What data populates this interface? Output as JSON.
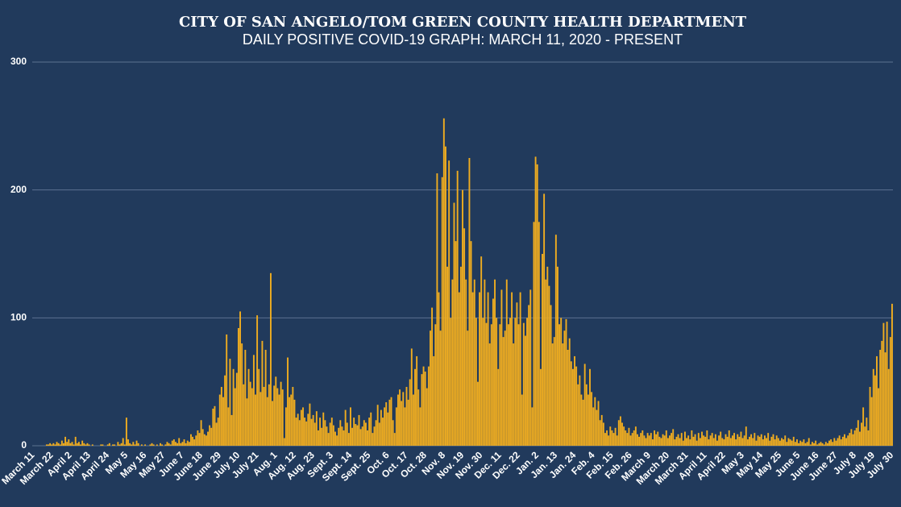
{
  "chart_data": {
    "type": "bar",
    "title": "CITY OF SAN ANGELO/TOM GREEN COUNTY HEALTH DEPARTMENT",
    "subtitle": "DAILY POSITIVE COVID-19 GRAPH: MARCH 11, 2020 - PRESENT",
    "color": "#f0ad20",
    "grid": true,
    "ylim": [
      0,
      300
    ],
    "yticks": [
      0,
      100,
      200,
      300
    ],
    "categories": [
      "March 11",
      null,
      null,
      null,
      null,
      null,
      null,
      null,
      null,
      null,
      null,
      "March 22",
      null,
      null,
      null,
      null,
      null,
      null,
      null,
      null,
      null,
      null,
      "April 2",
      null,
      null,
      null,
      null,
      null,
      null,
      null,
      null,
      null,
      null,
      "April 13",
      null,
      null,
      null,
      null,
      null,
      null,
      null,
      null,
      null,
      null,
      "April 24",
      null,
      null,
      null,
      null,
      null,
      null,
      null,
      null,
      null,
      null,
      "May 5",
      null,
      null,
      null,
      null,
      null,
      null,
      null,
      null,
      null,
      null,
      "May 16",
      null,
      null,
      null,
      null,
      null,
      null,
      null,
      null,
      null,
      null,
      "May 27",
      null,
      null,
      null,
      null,
      null,
      null,
      null,
      null,
      null,
      null,
      "June 7",
      null,
      null,
      null,
      null,
      null,
      null,
      null,
      null,
      null,
      null,
      "June 18",
      null,
      null,
      null,
      null,
      null,
      null,
      null,
      null,
      null,
      null,
      "June 29",
      null,
      null,
      null,
      null,
      null,
      null,
      null,
      null,
      null,
      null,
      "July 10",
      null,
      null,
      null,
      null,
      null,
      null,
      null,
      null,
      null,
      null,
      "July 21",
      null,
      null,
      null,
      null,
      null,
      null,
      null,
      null,
      null,
      null,
      "Aug. 1",
      null,
      null,
      null,
      null,
      null,
      null,
      null,
      null,
      null,
      null,
      "Aug. 12",
      null,
      null,
      null,
      null,
      null,
      null,
      null,
      null,
      null,
      null,
      "Aug. 23",
      null,
      null,
      null,
      null,
      null,
      null,
      null,
      null,
      null,
      null,
      "Sept. 3",
      null,
      null,
      null,
      null,
      null,
      null,
      null,
      null,
      null,
      null,
      "Sept. 14",
      null,
      null,
      null,
      null,
      null,
      null,
      null,
      null,
      null,
      null,
      "Sept. 25",
      null,
      null,
      null,
      null,
      null,
      null,
      null,
      null,
      null,
      null,
      "Oct. 6",
      null,
      null,
      null,
      null,
      null,
      null,
      null,
      null,
      null,
      null,
      "Oct. 17",
      null,
      null,
      null,
      null,
      null,
      null,
      null,
      null,
      null,
      null,
      "Oct. 28",
      null,
      null,
      null,
      null,
      null,
      null,
      null,
      null,
      null,
      null,
      "Nov. 8",
      null,
      null,
      null,
      null,
      null,
      null,
      null,
      null,
      null,
      null,
      "Nov. 19",
      null,
      null,
      null,
      null,
      null,
      null,
      null,
      null,
      null,
      null,
      "Nov. 30",
      null,
      null,
      null,
      null,
      null,
      null,
      null,
      null,
      null,
      null,
      "Dec. 11",
      null,
      null,
      null,
      null,
      null,
      null,
      null,
      null,
      null,
      null,
      "Dec. 22",
      null,
      null,
      null,
      null,
      null,
      null,
      null,
      null,
      null,
      null,
      "Jan. 2",
      null,
      null,
      null,
      null,
      null,
      null,
      null,
      null,
      null,
      null,
      "Jan. 13",
      null,
      null,
      null,
      null,
      null,
      null,
      null,
      null,
      null,
      null,
      "Jan. 24",
      null,
      null,
      null,
      null,
      null,
      null,
      null,
      null,
      null,
      null,
      "Feb. 4",
      null,
      null,
      null,
      null,
      null,
      null,
      null,
      null,
      null,
      null,
      "Feb. 15",
      null,
      null,
      null,
      null,
      null,
      null,
      null,
      null,
      null,
      null,
      "Feb. 26",
      null,
      null,
      null,
      null,
      null,
      null,
      null,
      null,
      null,
      null,
      "March 9",
      null,
      null,
      null,
      null,
      null,
      null,
      null,
      null,
      null,
      null,
      "March 20",
      null,
      null,
      null,
      null,
      null,
      null,
      null,
      null,
      null,
      null,
      "March 31",
      null,
      null,
      null,
      null,
      null,
      null,
      null,
      null,
      null,
      null,
      "April 11",
      null,
      null,
      null,
      null,
      null,
      null,
      null,
      null,
      null,
      null,
      "April 22",
      null,
      null,
      null,
      null,
      null,
      null,
      null,
      null,
      null,
      null,
      "May 3",
      null,
      null,
      null,
      null,
      null,
      null,
      null,
      null,
      null,
      null,
      "May 14",
      null,
      null,
      null,
      null,
      null,
      null,
      null,
      null,
      null,
      null,
      "May 25",
      null,
      null,
      null,
      null,
      null,
      null,
      null,
      null,
      null,
      null,
      "June 5",
      null,
      null,
      null,
      null,
      null,
      null,
      null,
      null,
      null,
      null,
      "June 16",
      null,
      null,
      null,
      null,
      null,
      null,
      null,
      null,
      null,
      null,
      "June 27",
      null,
      null,
      null,
      null,
      null,
      null,
      null,
      null,
      null,
      null,
      "July 8",
      null,
      null,
      null,
      null,
      null,
      null,
      null,
      null,
      null,
      null,
      "July 19",
      null,
      null,
      null,
      null,
      null,
      null,
      null,
      null,
      null,
      null,
      "July 30"
    ],
    "values": [
      0,
      0,
      0,
      0,
      0,
      0,
      0,
      0,
      1,
      1,
      2,
      1,
      2,
      1,
      3,
      2,
      1,
      4,
      2,
      7,
      3,
      5,
      2,
      3,
      1,
      7,
      2,
      3,
      1,
      4,
      2,
      1,
      2,
      1,
      0,
      1,
      0,
      0,
      0,
      0,
      1,
      1,
      0,
      0,
      1,
      2,
      0,
      1,
      1,
      0,
      3,
      1,
      2,
      6,
      1,
      22,
      5,
      2,
      1,
      3,
      1,
      4,
      2,
      0,
      1,
      0,
      1,
      0,
      0,
      1,
      2,
      1,
      0,
      1,
      0,
      2,
      1,
      0,
      1,
      3,
      2,
      1,
      4,
      5,
      3,
      2,
      6,
      2,
      3,
      5,
      2,
      4,
      3,
      9,
      7,
      5,
      8,
      12,
      10,
      20,
      13,
      9,
      8,
      11,
      16,
      14,
      29,
      31,
      18,
      22,
      40,
      46,
      38,
      55,
      87,
      30,
      68,
      24,
      60,
      45,
      57,
      92,
      105,
      80,
      48,
      75,
      37,
      60,
      50,
      45,
      71,
      40,
      102,
      60,
      42,
      82,
      46,
      75,
      38,
      48,
      135,
      35,
      47,
      54,
      45,
      40,
      50,
      44,
      6,
      30,
      69,
      38,
      40,
      46,
      36,
      22,
      25,
      20,
      28,
      30,
      22,
      19,
      25,
      33,
      21,
      24,
      18,
      27,
      12,
      22,
      14,
      26,
      20,
      15,
      10,
      18,
      22,
      16,
      11,
      8,
      14,
      20,
      15,
      12,
      28,
      18,
      10,
      30,
      14,
      22,
      17,
      16,
      24,
      13,
      15,
      20,
      18,
      12,
      22,
      26,
      10,
      15,
      20,
      32,
      18,
      28,
      22,
      30,
      34,
      26,
      36,
      38,
      20,
      10,
      30,
      40,
      44,
      35,
      42,
      30,
      46,
      36,
      52,
      76,
      40,
      60,
      70,
      44,
      30,
      56,
      62,
      58,
      45,
      62,
      90,
      108,
      70,
      95,
      213,
      120,
      90,
      210,
      256,
      234,
      140,
      223,
      100,
      130,
      190,
      160,
      215,
      120,
      140,
      200,
      170,
      130,
      90,
      225,
      160,
      120,
      130,
      100,
      50,
      120,
      148,
      100,
      130,
      96,
      120,
      80,
      95,
      115,
      130,
      100,
      60,
      95,
      122,
      85,
      90,
      130,
      95,
      100,
      120,
      80,
      100,
      112,
      95,
      120,
      40,
      96,
      86,
      100,
      110,
      122,
      30,
      175,
      226,
      220,
      175,
      60,
      150,
      197,
      130,
      140,
      125,
      110,
      80,
      85,
      165,
      140,
      95,
      100,
      80,
      90,
      99,
      75,
      84,
      66,
      60,
      70,
      62,
      48,
      55,
      40,
      36,
      64,
      48,
      40,
      60,
      42,
      30,
      38,
      28,
      35,
      20,
      24,
      18,
      10,
      12,
      8,
      15,
      12,
      10,
      14,
      8,
      20,
      23,
      18,
      15,
      12,
      10,
      14,
      8,
      10,
      12,
      15,
      9,
      7,
      10,
      12,
      8,
      6,
      10,
      8,
      10,
      5,
      12,
      9,
      11,
      7,
      6,
      9,
      8,
      12,
      6,
      8,
      10,
      13,
      5,
      7,
      9,
      6,
      10,
      4,
      11,
      6,
      8,
      5,
      12,
      7,
      9,
      4,
      10,
      6,
      11,
      8,
      7,
      12,
      5,
      8,
      10,
      6,
      9,
      4,
      8,
      11,
      6,
      5,
      9,
      7,
      12,
      6,
      8,
      10,
      5,
      9,
      7,
      11,
      6,
      8,
      15,
      5,
      7,
      9,
      6,
      10,
      4,
      8,
      7,
      9,
      5,
      8,
      6,
      10,
      4,
      7,
      9,
      5,
      8,
      6,
      4,
      6,
      5,
      8,
      3,
      6,
      5,
      4,
      7,
      3,
      5,
      2,
      4,
      3,
      5,
      2,
      3,
      6,
      1,
      3,
      2,
      4,
      1,
      2,
      3,
      2,
      1,
      3,
      2,
      4,
      5,
      3,
      6,
      4,
      6,
      8,
      5,
      7,
      9,
      6,
      8,
      10,
      13,
      9,
      12,
      14,
      20,
      11,
      18,
      30,
      15,
      22,
      12,
      46,
      38,
      60,
      55,
      70,
      45,
      75,
      82,
      96,
      73,
      97,
      60,
      85,
      111
    ]
  }
}
